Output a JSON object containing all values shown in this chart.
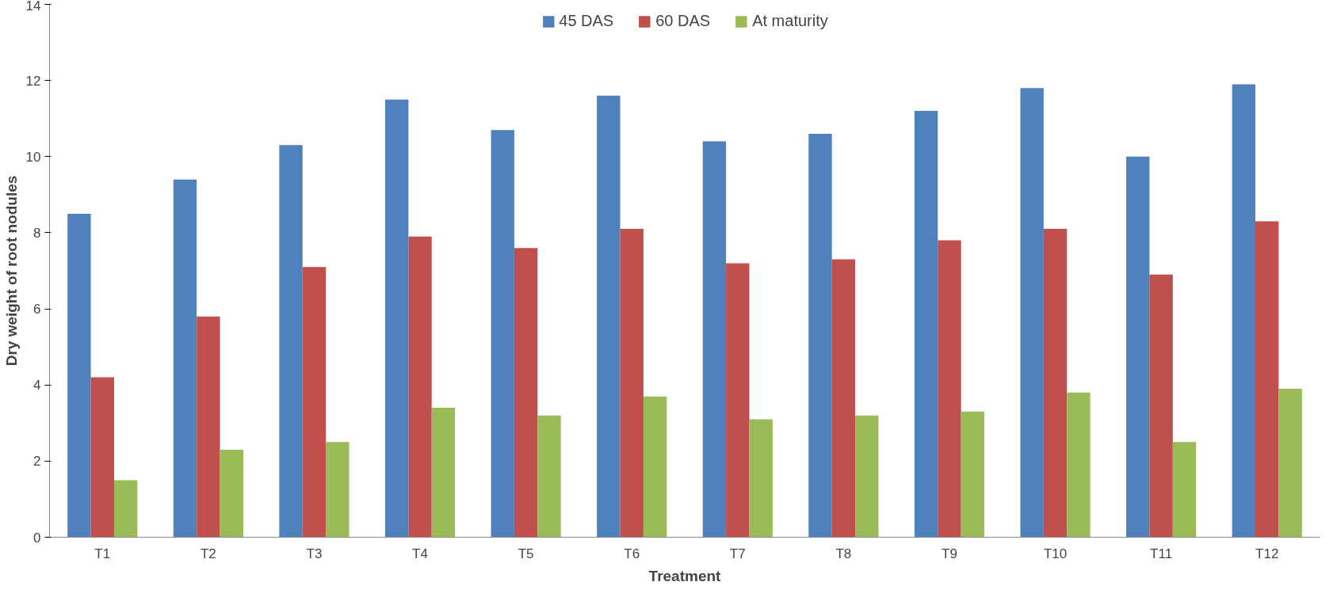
{
  "chart_data": {
    "type": "bar",
    "xlabel": "Treatment",
    "ylabel": "Dry weight of root nodules",
    "categories": [
      "T1",
      "T2",
      "T3",
      "T4",
      "T5",
      "T6",
      "T7",
      "T8",
      "T9",
      "T10",
      "T11",
      "T12"
    ],
    "series": [
      {
        "name": "45 DAS",
        "color": "#4f81bd",
        "values": [
          8.5,
          9.4,
          10.3,
          11.5,
          10.7,
          11.6,
          10.4,
          10.6,
          11.2,
          11.8,
          10.0,
          11.9
        ]
      },
      {
        "name": "60 DAS",
        "color": "#c0504d",
        "values": [
          4.2,
          5.8,
          7.1,
          7.9,
          7.6,
          8.1,
          7.2,
          7.3,
          7.8,
          8.1,
          6.9,
          8.3
        ]
      },
      {
        "name": "At maturity",
        "color": "#9bbb59",
        "values": [
          1.5,
          2.3,
          2.5,
          3.4,
          3.2,
          3.7,
          3.1,
          3.2,
          3.3,
          3.8,
          2.5,
          3.9
        ]
      }
    ],
    "ylim": [
      0,
      14
    ],
    "yticks": [
      0,
      2,
      4,
      6,
      8,
      10,
      12,
      14
    ],
    "grid": false,
    "legend": "top"
  }
}
